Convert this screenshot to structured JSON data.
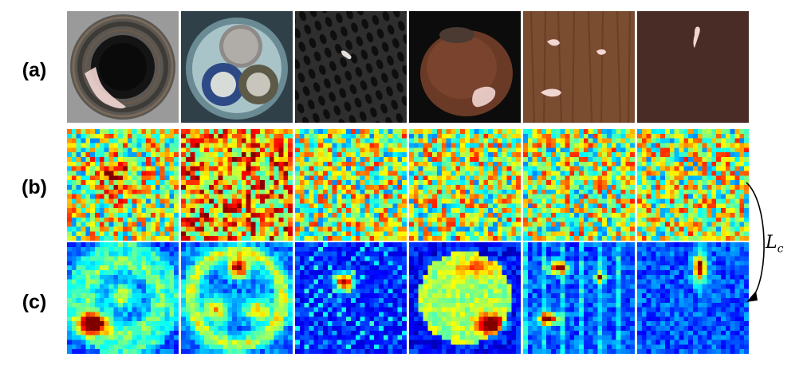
{
  "row_labels": {
    "a": "(a)",
    "b": "(b)",
    "c": "(c)"
  },
  "loss": {
    "symbol": "L",
    "subscript": "c"
  },
  "colors": {
    "colormap": "jet",
    "anomaly_overlay": "#f2d6d2",
    "background": "#ffffff"
  },
  "images": [
    {
      "name": "bottle",
      "kind": "photo"
    },
    {
      "name": "cable",
      "kind": "photo"
    },
    {
      "name": "grid",
      "kind": "photo"
    },
    {
      "name": "hazelnut",
      "kind": "photo"
    },
    {
      "name": "wood",
      "kind": "photo"
    },
    {
      "name": "leather",
      "kind": "photo"
    }
  ]
}
